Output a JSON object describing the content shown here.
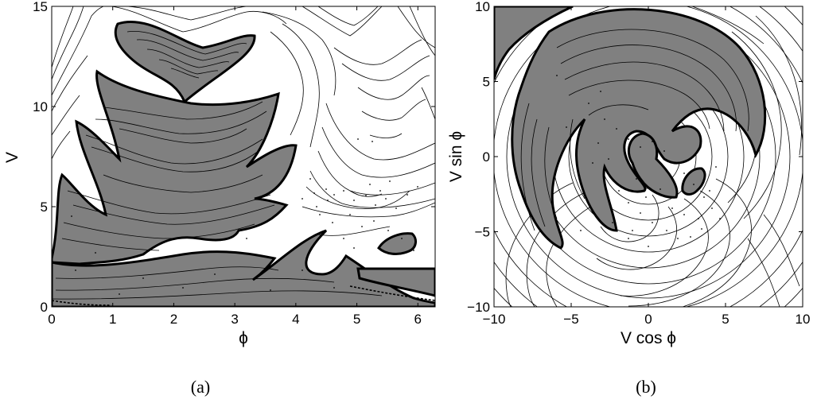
{
  "colors": {
    "fill": "#808080",
    "line": "#000000",
    "background": "#ffffff"
  },
  "panels": {
    "a": {
      "caption": "(a)"
    },
    "b": {
      "caption": "(b)"
    }
  },
  "chart_data": [
    {
      "type": "contour",
      "xlabel": "ϕ",
      "ylabel": "V",
      "xlim": [
        0,
        6.2832
      ],
      "ylim": [
        0,
        15
      ],
      "xticks": [
        0,
        1,
        2,
        3,
        4,
        5,
        6
      ],
      "yticks": [
        0,
        5,
        10,
        15
      ],
      "filled_regions": [
        {
          "center": [
            2.2,
            11.8
          ]
        },
        {
          "center": [
            2.2,
            7.8
          ]
        },
        {
          "center": [
            2.5,
            1.5
          ]
        },
        {
          "center": [
            5.55,
            3.2
          ]
        },
        {
          "center": [
            5.6,
            1.3
          ]
        }
      ],
      "scatter_points": "sparse chaotic orbit points"
    },
    {
      "type": "contour",
      "xlabel": "V cos ϕ",
      "ylabel": "V sin ϕ",
      "xlim": [
        -10,
        10
      ],
      "ylim": [
        -10,
        10
      ],
      "xticks": [
        -10,
        -5,
        0,
        5,
        10
      ],
      "yticks": [
        -10,
        -5,
        0,
        5,
        10
      ],
      "filled_regions": [
        {
          "center": [
            -9,
            8.5
          ]
        },
        {
          "center": [
            0,
            3
          ]
        },
        {
          "center": [
            2.9,
            -1.9
          ]
        }
      ],
      "scatter_points": "chaotic orbit points near origin"
    }
  ]
}
